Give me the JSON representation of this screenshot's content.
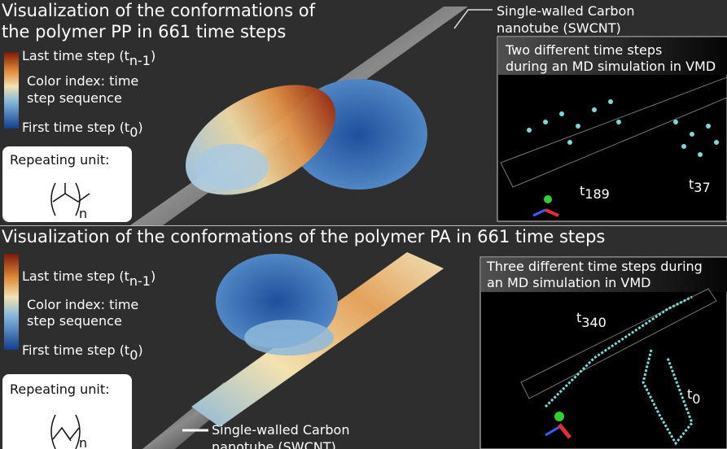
{
  "panels": [
    {
      "title_lines": [
        "Visualization of the conformations of",
        "the polymer PP in 661 time steps"
      ],
      "colorbar": {
        "top": {
          "label": "Last time step (t",
          "subscript": "n-1",
          "suffix": ")"
        },
        "middle_lines": [
          "Color index: time",
          "step sequence"
        ],
        "bottom": {
          "label": "First time step (t",
          "subscript": "0",
          "suffix": ")"
        }
      },
      "repeating_unit": {
        "label": "Repeating unit:",
        "n": "n"
      },
      "nanotube_label_lines": [
        "Single-walled Carbon",
        "nanotube (SWCNT)"
      ],
      "inset": {
        "title_lines": [
          "Two different time steps",
          "during an MD simulation in VMD"
        ],
        "time_labels": [
          {
            "t": "t",
            "subscript": "189"
          },
          {
            "t": "t",
            "subscript": "37"
          }
        ]
      }
    },
    {
      "title_lines": [
        "Visualization of the conformations of the polymer PA in 661 time steps"
      ],
      "colorbar": {
        "top": {
          "label": "Last time step (t",
          "subscript": "n-1",
          "suffix": ")"
        },
        "middle_lines": [
          "Color index: time",
          "step sequence"
        ],
        "bottom": {
          "label": "First time step (t",
          "subscript": "0",
          "suffix": ")"
        }
      },
      "repeating_unit": {
        "label": "Repeating unit:",
        "n": "n"
      },
      "nanotube_label_lines": [
        "Single-walled Carbon",
        "nanotube (SWCNT)"
      ],
      "inset": {
        "title_lines": [
          "Three different time steps during",
          "an MD simulation in VMD"
        ],
        "time_labels": [
          {
            "t": "t",
            "subscript": "340"
          },
          {
            "t": "t",
            "subscript": "0"
          }
        ]
      }
    }
  ]
}
